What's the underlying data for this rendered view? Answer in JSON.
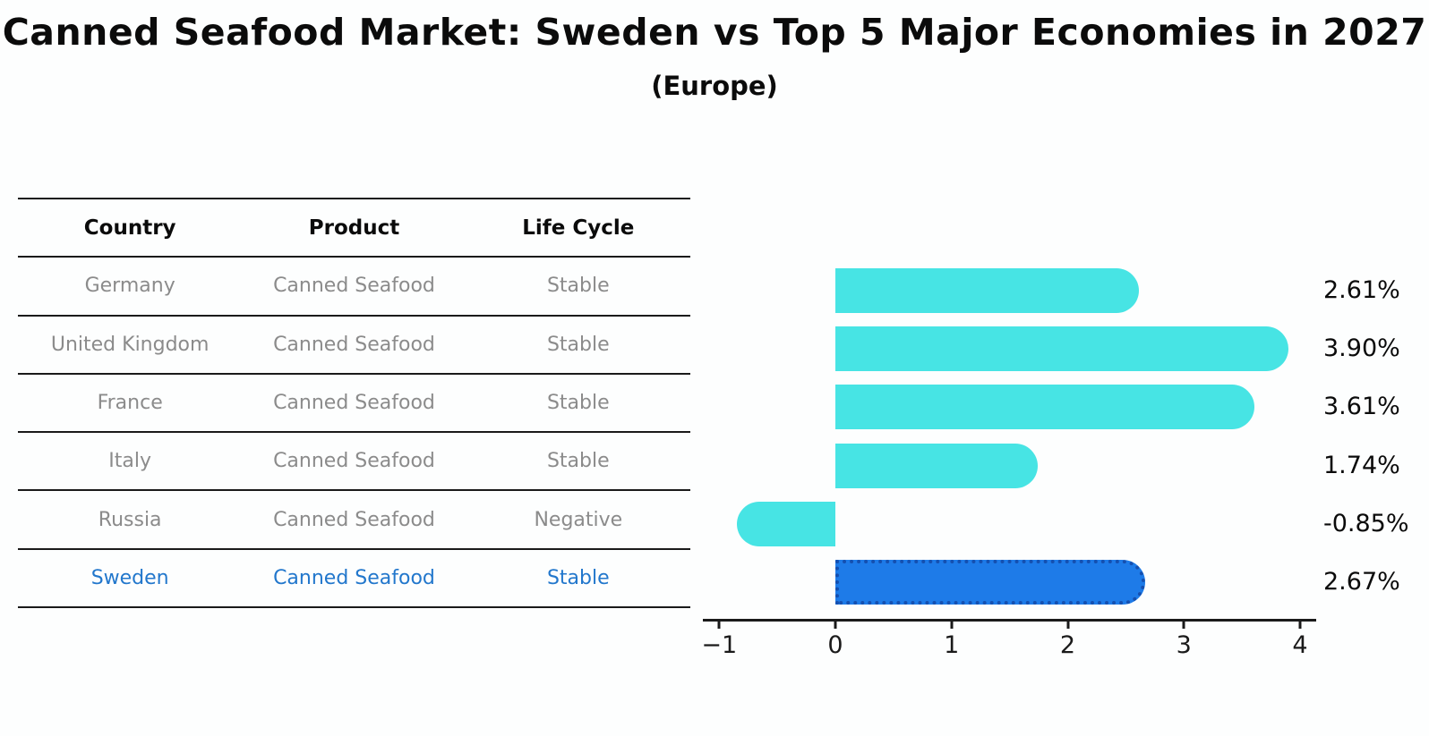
{
  "title": "Canned Seafood Market: Sweden vs Top 5 Major Economies in 2027",
  "subtitle": "(Europe)",
  "table": {
    "headers": [
      "Country",
      "Product",
      "Life Cycle"
    ],
    "rows": [
      {
        "country": "Germany",
        "product": "Canned Seafood",
        "life_cycle": "Stable",
        "highlight": false
      },
      {
        "country": "United Kingdom",
        "product": "Canned Seafood",
        "life_cycle": "Stable",
        "highlight": false
      },
      {
        "country": "France",
        "product": "Canned Seafood",
        "life_cycle": "Stable",
        "highlight": false
      },
      {
        "country": "Italy",
        "product": "Canned Seafood",
        "life_cycle": "Stable",
        "highlight": false
      },
      {
        "country": "Russia",
        "product": "Canned Seafood",
        "life_cycle": "Negative",
        "highlight": false
      },
      {
        "country": "Sweden",
        "product": "Canned Seafood",
        "life_cycle": "Stable",
        "highlight": true
      }
    ]
  },
  "chart_data": {
    "type": "bar",
    "orientation": "horizontal",
    "title": "Canned Seafood Market: Sweden vs Top 5 Major Economies in 2027",
    "subtitle": "(Europe)",
    "categories": [
      "Germany",
      "United Kingdom",
      "France",
      "Italy",
      "Russia",
      "Sweden"
    ],
    "values": [
      2.61,
      3.9,
      3.61,
      1.74,
      -0.85,
      2.67
    ],
    "value_labels": [
      "2.61%",
      "3.90%",
      "3.61%",
      "1.74%",
      "-0.85%",
      "2.67%"
    ],
    "unit": "percent CAGR",
    "highlight_category": "Sweden",
    "x_ticks": [
      -1,
      0,
      1,
      2,
      3,
      4
    ],
    "x_tick_labels": [
      "−1",
      "0",
      "1",
      "2",
      "3",
      "4"
    ],
    "xlim": [
      -1.14,
      4.14
    ],
    "grid": false,
    "legend": false,
    "colors": {
      "bar": "#47e4e4",
      "highlight_bar": "#1e7be8",
      "highlight_border": "#1550b0",
      "row_text": "#8b8b8b",
      "highlight_text": "#2277cc",
      "axis": "#1a1a1a"
    }
  }
}
